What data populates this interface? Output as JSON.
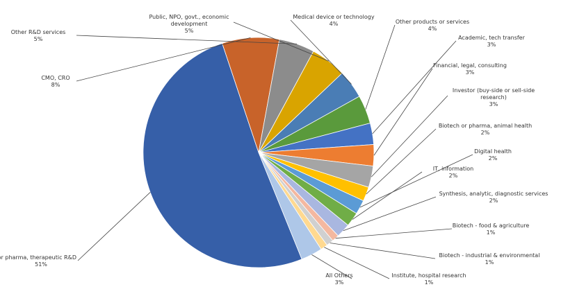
{
  "chart_data": {
    "type": "pie",
    "title": "",
    "start_angle_deg": 60,
    "direction": "counterclockwise-from-top-is-false",
    "slices": [
      {
        "name": "Biotech or pharma, therapeutic R&D",
        "pct_label": "51%",
        "value": 51,
        "color": "#365fa8"
      },
      {
        "name": "CMO, CRO",
        "pct_label": "8%",
        "value": 8,
        "color": "#c8632a"
      },
      {
        "name": "Other R&D services",
        "pct_label": "5%",
        "value": 5,
        "color": "#8c8c8c"
      },
      {
        "name": "Public, NPO, govt., economic development",
        "pct_label": "5%",
        "value": 5,
        "color": "#d9a400"
      },
      {
        "name": "Medical device or technology",
        "pct_label": "4%",
        "value": 4,
        "color": "#4a7db5"
      },
      {
        "name": "Other products or services",
        "pct_label": "4%",
        "value": 4,
        "color": "#5a9a3c"
      },
      {
        "name": "Academic, tech transfer",
        "pct_label": "3%",
        "value": 3,
        "color": "#4472c4"
      },
      {
        "name": "Financial, legal, consulting",
        "pct_label": "3%",
        "value": 3,
        "color": "#ed7d31"
      },
      {
        "name": "Investor (buy-side or sell-side research)",
        "pct_label": "3%",
        "value": 3,
        "color": "#a5a5a5"
      },
      {
        "name": "Biotech or pharma, animal health",
        "pct_label": "2%",
        "value": 2,
        "color": "#ffc000"
      },
      {
        "name": "Digital health",
        "pct_label": "2%",
        "value": 2,
        "color": "#5b9bd5"
      },
      {
        "name": "IT, information",
        "pct_label": "2%",
        "value": 2,
        "color": "#70ad47"
      },
      {
        "name": "Synthesis, analytic, diagnostic services",
        "pct_label": "2%",
        "value": 2,
        "color": "#a9b7e0"
      },
      {
        "name": "Biotech - food & agriculture",
        "pct_label": "1%",
        "value": 1,
        "color": "#f4b8a0"
      },
      {
        "name": "Biotech - industrial & environmental",
        "pct_label": "1%",
        "value": 1,
        "color": "#d0d0d0"
      },
      {
        "name": "Institute, hospital research",
        "pct_label": "1%",
        "value": 1,
        "color": "#ffd990"
      },
      {
        "name": "All Others",
        "pct_label": "3%",
        "value": 3,
        "color": "#aec7e8"
      }
    ]
  }
}
